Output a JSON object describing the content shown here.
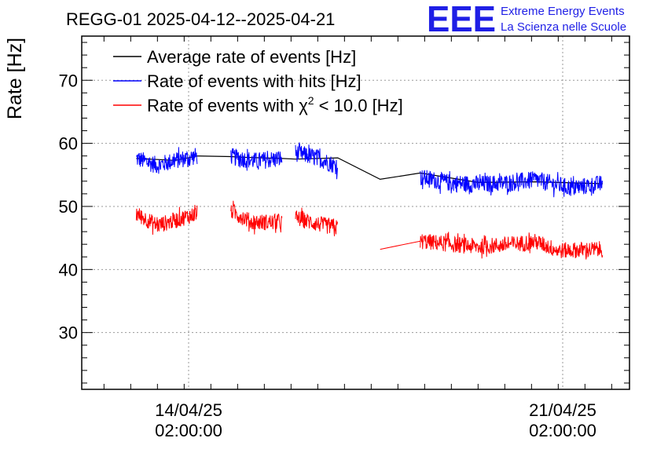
{
  "header": {
    "title": "REGG-01 2025-04-12--2025-04-21",
    "logo_text": "EEE",
    "logo_line1": "Extreme Energy Events",
    "logo_line2": "La Scienza nelle Scuole"
  },
  "chart_data": {
    "type": "line",
    "title": "REGG-01 2025-04-12--2025-04-21",
    "xlabel": "",
    "ylabel": "Rate [Hz]",
    "ylim": [
      21,
      77
    ],
    "xlim": [
      "2025-04-12 02:00:00",
      "2025-04-22 08:00:00"
    ],
    "grid": true,
    "legend_position": "top-left",
    "yticks": [
      "30",
      "40",
      "50",
      "60",
      "70"
    ],
    "xticks": [
      {
        "at": "2025-04-14 02:00:00",
        "line1": "14/04/25",
        "line2": "02:00:00"
      },
      {
        "at": "2025-04-21 02:00:00",
        "line1": "21/04/25",
        "line2": "02:00:00"
      }
    ],
    "colors": {
      "average": "#000000",
      "hits": "#0000ff",
      "chi2": "#ff0000"
    },
    "series": [
      {
        "name": "Average rate of events [Hz]",
        "key": "average",
        "color": "#000000",
        "x": [
          "2025-04-13 02:30:00",
          "2025-04-13 20:00:00",
          "2025-04-14 06:00:00",
          "2025-04-14 21:00:00",
          "2025-04-15 02:00:00",
          "2025-04-15 20:00:00",
          "2025-04-16 02:00:00",
          "2025-04-16 21:00:00",
          "2025-04-17 16:00:00",
          "2025-04-18 10:00:00",
          "2025-04-19 12:00:00",
          "2025-04-20 14:00:00",
          "2025-04-21 20:00:00"
        ],
        "y": [
          57.6,
          57.3,
          58.0,
          57.9,
          57.8,
          57.6,
          57.5,
          57.7,
          54.3,
          55.3,
          53.8,
          53.9,
          53.6
        ]
      },
      {
        "name": "Rate of events with hits [Hz]",
        "key": "hits",
        "color": "#0000ff",
        "noise": 1.4,
        "segments": [
          {
            "x": [
              "2025-04-13 02:30:00",
              "2025-04-13 12:00:00",
              "2025-04-13 20:00:00",
              "2025-04-14 06:00:00"
            ],
            "y": [
              57.6,
              56.5,
              57.3,
              58.0
            ]
          },
          {
            "x": [
              "2025-04-14 21:00:00",
              "2025-04-15 08:00:00",
              "2025-04-15 20:00:00"
            ],
            "y": [
              57.9,
              57.2,
              57.6
            ]
          },
          {
            "x": [
              "2025-04-16 02:00:00",
              "2025-04-16 12:00:00",
              "2025-04-16 21:00:00"
            ],
            "y": [
              58.5,
              57.7,
              56.3
            ]
          },
          {
            "x": [
              "2025-04-18 10:00:00",
              "2025-04-19 00:00:00",
              "2025-04-19 12:00:00",
              "2025-04-20 00:00:00",
              "2025-04-20 14:00:00",
              "2025-04-21 06:00:00",
              "2025-04-21 20:00:00"
            ],
            "y": [
              54.6,
              53.7,
              53.5,
              53.7,
              54.2,
              52.9,
              53.6
            ]
          }
        ]
      },
      {
        "name": "Rate of events with χ2 < 10.0 [Hz]",
        "key": "chi2",
        "color": "#ff0000",
        "noise": 1.3,
        "segments": [
          {
            "x": [
              "2025-04-13 02:30:00",
              "2025-04-13 12:00:00",
              "2025-04-13 20:00:00",
              "2025-04-14 06:00:00"
            ],
            "y": [
              48.8,
              47.0,
              47.8,
              48.9
            ]
          },
          {
            "x": [
              "2025-04-14 21:00:00",
              "2025-04-15 04:00:00",
              "2025-04-15 06:00:00",
              "2025-04-15 20:00:00"
            ],
            "y": [
              49.3,
              48.0,
              47.5,
              47.5
            ]
          },
          {
            "x": [
              "2025-04-16 02:00:00",
              "2025-04-16 12:00:00",
              "2025-04-16 21:00:00"
            ],
            "y": [
              48.2,
              47.2,
              46.6
            ]
          },
          {
            "x": [
              "2025-04-17 16:00:00",
              "2025-04-18 10:00:00"
            ],
            "y": [
              43.2,
              44.5
            ]
          },
          {
            "x": [
              "2025-04-18 10:00:00",
              "2025-04-19 00:00:00",
              "2025-04-19 12:00:00",
              "2025-04-20 00:00:00",
              "2025-04-20 14:00:00",
              "2025-04-21 00:00:00",
              "2025-04-21 20:00:00"
            ],
            "y": [
              44.5,
              44.0,
              43.6,
              43.9,
              44.4,
              43.0,
              43.2
            ]
          }
        ]
      }
    ],
    "legend_entries": [
      {
        "key": "average",
        "text": "Average rate of events [Hz]"
      },
      {
        "key": "hits",
        "text": "Rate of events with hits [Hz]"
      },
      {
        "key": "chi2",
        "prefix": "Rate of events with χ",
        "sup": "2",
        "suffix": " < 10.0 [Hz]"
      }
    ]
  }
}
